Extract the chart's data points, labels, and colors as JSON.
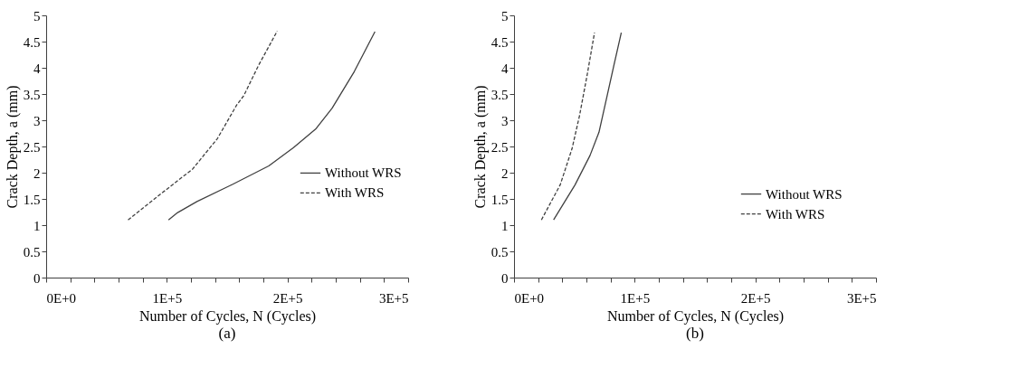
{
  "chart_data": [
    {
      "type": "line",
      "title": "(a)",
      "xlabel": "Number of Cycles, N (Cycles)",
      "ylabel": "Crack Depth, a (mm)",
      "xlim": [
        0,
        300000
      ],
      "ylim": [
        0,
        5
      ],
      "xticks": [
        {
          "value": 0,
          "label": "0E+0"
        },
        {
          "value": 20000,
          "label": null
        },
        {
          "value": 40000,
          "label": null
        },
        {
          "value": 60000,
          "label": null
        },
        {
          "value": 80000,
          "label": null
        },
        {
          "value": 100000,
          "label": "1E+5"
        },
        {
          "value": 120000,
          "label": null
        },
        {
          "value": 140000,
          "label": null
        },
        {
          "value": 160000,
          "label": null
        },
        {
          "value": 180000,
          "label": null
        },
        {
          "value": 200000,
          "label": "2E+5"
        },
        {
          "value": 220000,
          "label": null
        },
        {
          "value": 240000,
          "label": null
        },
        {
          "value": 260000,
          "label": null
        },
        {
          "value": 280000,
          "label": null
        },
        {
          "value": 300000,
          "label": "3E+5"
        }
      ],
      "yticks": [
        0,
        0.5,
        1,
        1.5,
        2,
        2.5,
        3,
        3.5,
        4,
        4.5,
        5
      ],
      "grid": false,
      "legend": "right",
      "marker": "none",
      "series": [
        {
          "name": "Without WRS",
          "color": "#404040",
          "line_style": "solid",
          "x": [
            101400,
            109000,
            125000,
            154700,
            184500,
            205000,
            223300,
            237000,
            255400,
            272500
          ],
          "values": [
            1.1,
            1.24,
            1.45,
            1.78,
            2.13,
            2.48,
            2.83,
            3.23,
            3.93,
            4.69
          ]
        },
        {
          "name": "With WRS",
          "color": "#404040",
          "line_style": "dashed",
          "x": [
            67900,
            98600,
            121400,
            141900,
            157900,
            163800,
            176100,
            191500
          ],
          "values": [
            1.1,
            1.66,
            2.07,
            2.65,
            3.29,
            3.47,
            4.05,
            4.7
          ]
        }
      ]
    },
    {
      "type": "line",
      "title": "(b)",
      "xlabel": "Number of Cycles, N (Cycles)",
      "ylabel": "Crack Depth, a (mm)",
      "xlim": [
        0,
        300000
      ],
      "ylim": [
        0,
        5
      ],
      "xticks": [
        {
          "value": 0,
          "label": "0E+0"
        },
        {
          "value": 20000,
          "label": null
        },
        {
          "value": 40000,
          "label": null
        },
        {
          "value": 60000,
          "label": null
        },
        {
          "value": 80000,
          "label": null
        },
        {
          "value": 100000,
          "label": "1E+5"
        },
        {
          "value": 120000,
          "label": null
        },
        {
          "value": 140000,
          "label": null
        },
        {
          "value": 160000,
          "label": null
        },
        {
          "value": 180000,
          "label": null
        },
        {
          "value": 200000,
          "label": "2E+5"
        },
        {
          "value": 220000,
          "label": null
        },
        {
          "value": 240000,
          "label": null
        },
        {
          "value": 260000,
          "label": null
        },
        {
          "value": 280000,
          "label": null
        },
        {
          "value": 300000,
          "label": "3E+5"
        }
      ],
      "yticks": [
        0,
        0.5,
        1,
        1.5,
        2,
        2.5,
        3,
        3.5,
        4,
        4.5,
        5
      ],
      "grid": false,
      "legend": "bottom right",
      "marker": "none",
      "series": [
        {
          "name": "Without WRS",
          "color": "#404040",
          "line_style": "solid",
          "x": [
            32800,
            50600,
            63000,
            70400,
            76500,
            82700,
            88900
          ],
          "values": [
            1.1,
            1.77,
            2.33,
            2.77,
            3.4,
            4.04,
            4.67
          ]
        },
        {
          "name": "With WRS",
          "color": "#404040",
          "line_style": "dashed",
          "x": [
            22700,
            38300,
            48100,
            54300,
            60500,
            66700
          ],
          "values": [
            1.1,
            1.77,
            2.46,
            3.09,
            3.85,
            4.67
          ]
        }
      ]
    }
  ]
}
